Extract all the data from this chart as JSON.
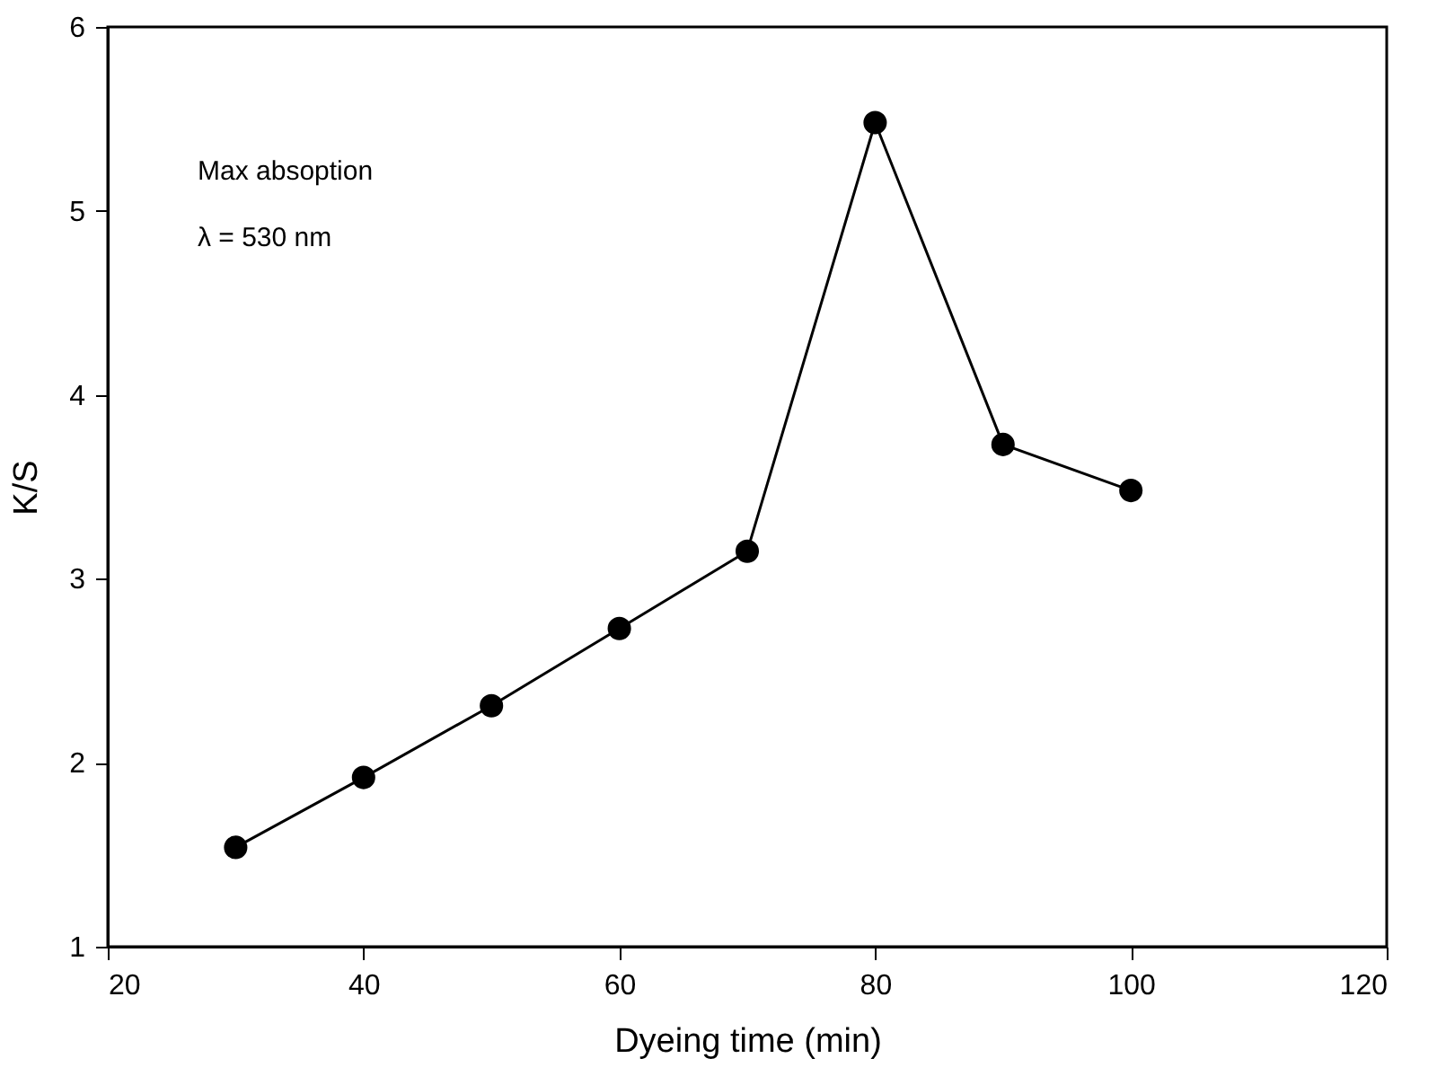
{
  "chart_data": {
    "type": "line",
    "xlabel": "Dyeing time (min)",
    "ylabel": "K/S",
    "x": [
      30,
      40,
      50,
      60,
      70,
      80,
      90,
      100
    ],
    "series": [
      {
        "color": "#000000",
        "values": [
          1.54,
          1.92,
          2.31,
          2.73,
          3.15,
          5.48,
          3.73,
          3.48
        ]
      }
    ],
    "xlim": [
      20,
      120
    ],
    "xticks": [
      20,
      40,
      60,
      80,
      100,
      120
    ],
    "ylim": [
      1,
      6
    ],
    "yticks": [
      1,
      2,
      3,
      4,
      5,
      6
    ],
    "marker": "circle",
    "line_style": "solid",
    "grid": false,
    "annotations": [
      "Max absoption",
      "λ = 530 nm"
    ]
  }
}
